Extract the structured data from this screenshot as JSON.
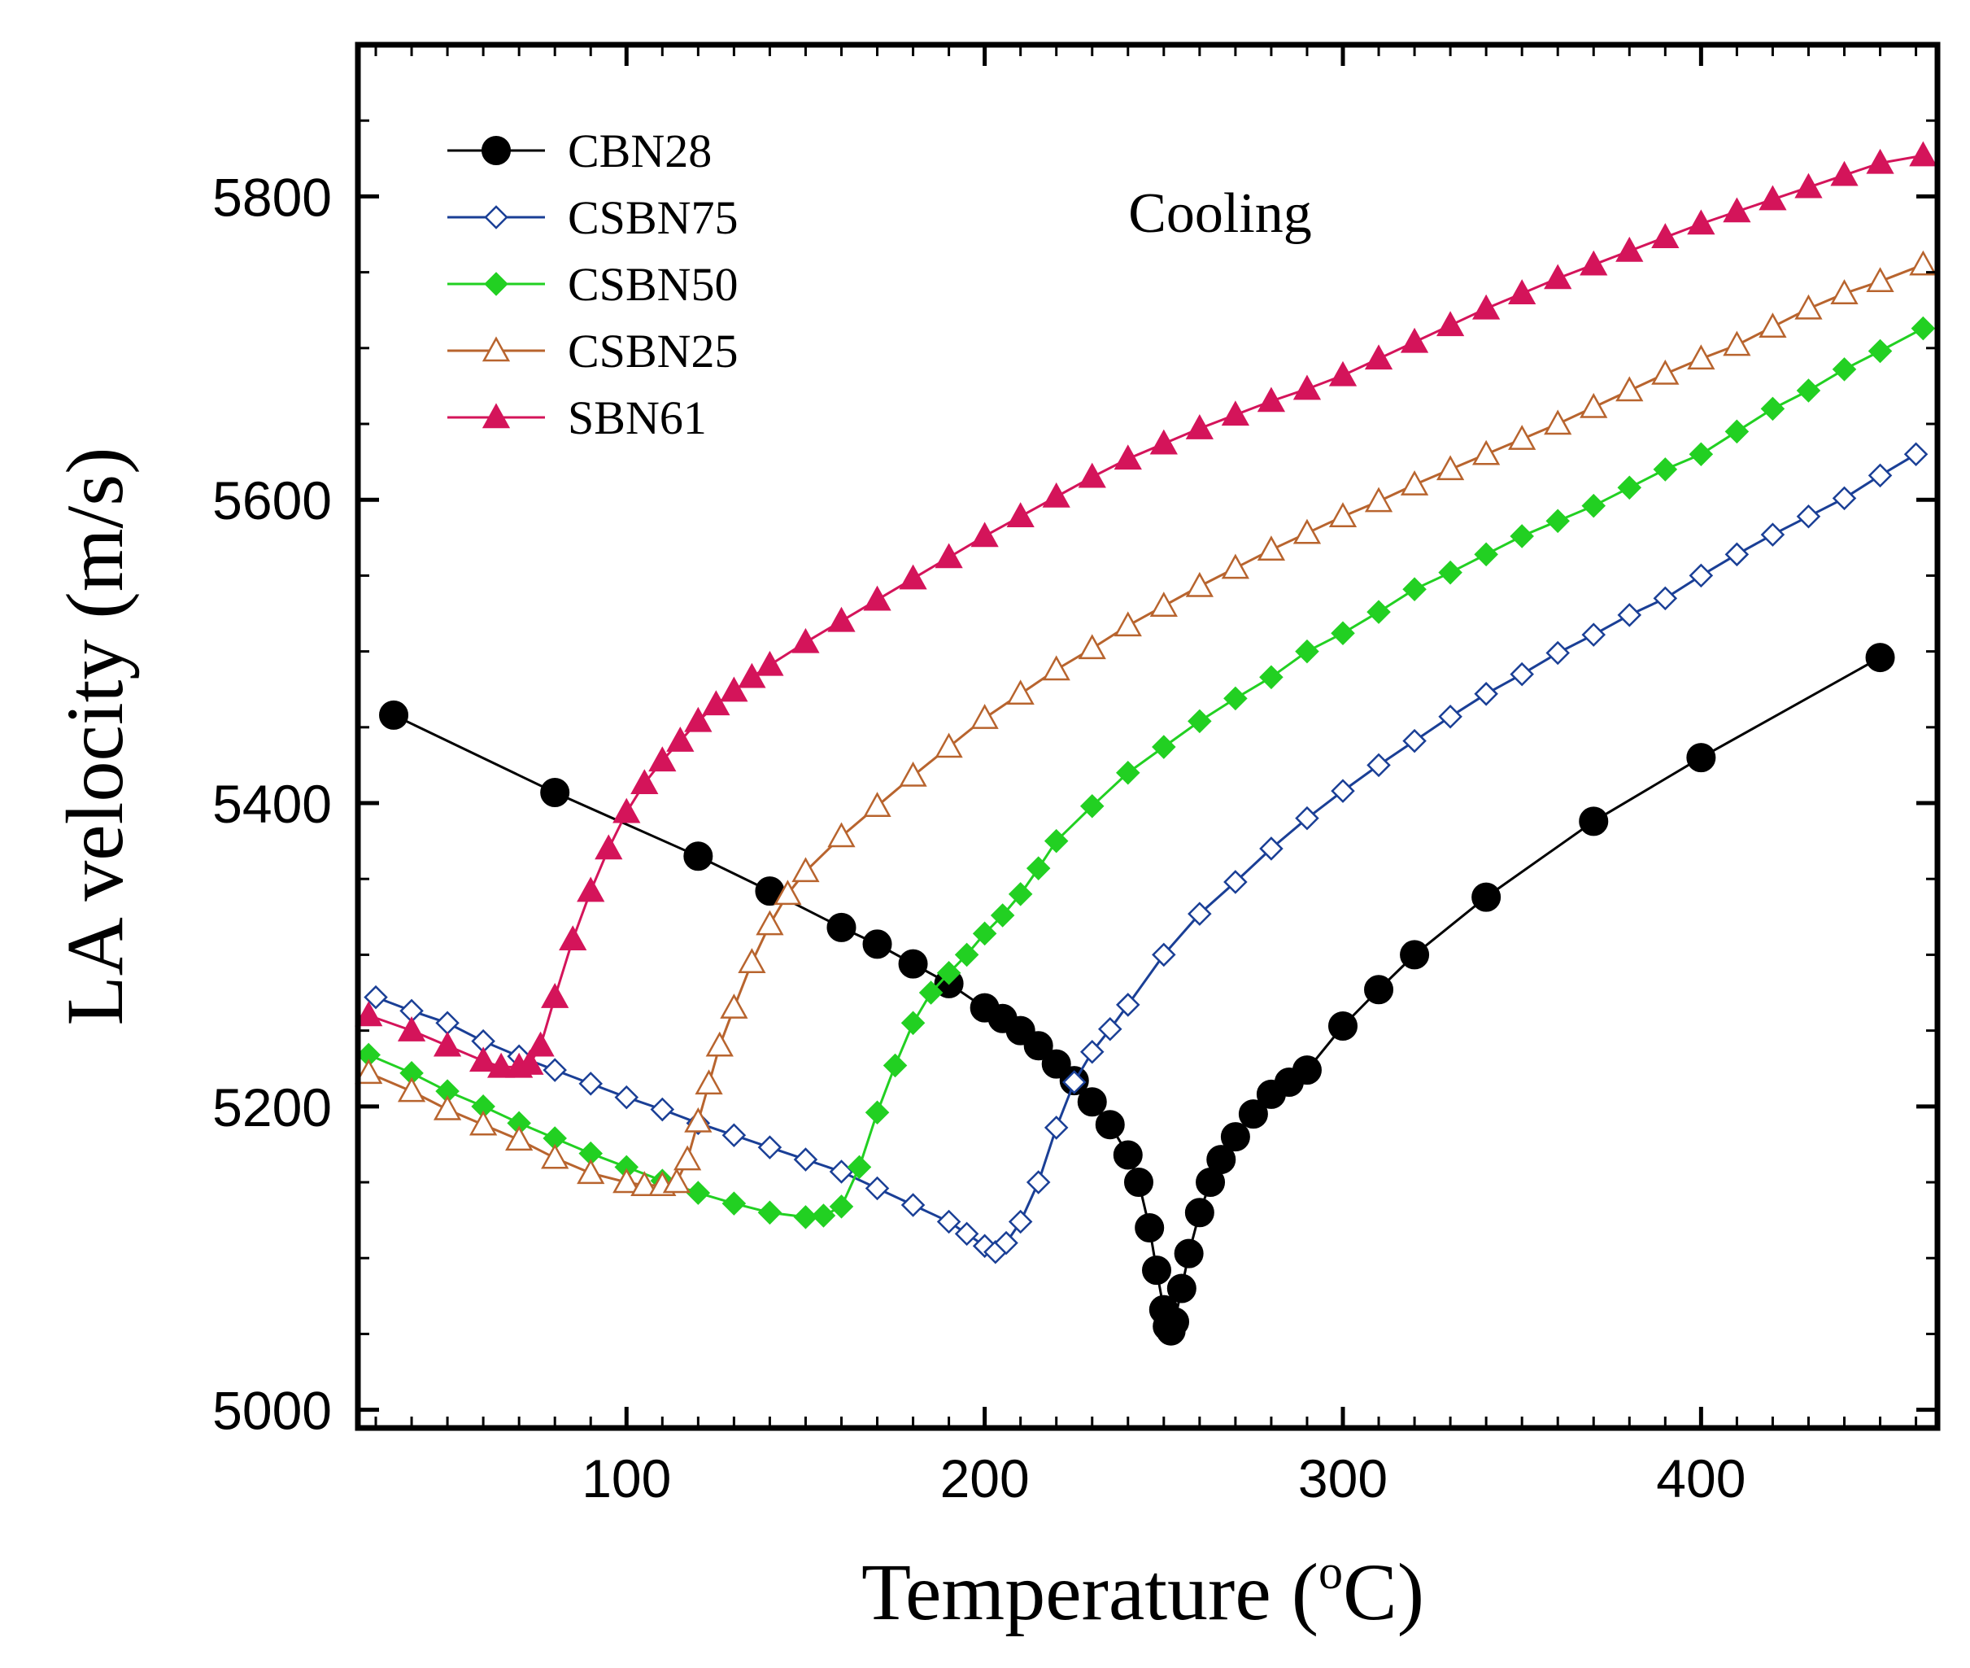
{
  "chart_data": {
    "type": "line",
    "title": "",
    "xlabel": "Temperature (",
    "xlabel_sup": "o",
    "xlabel_unit": "C)",
    "ylabel": "LA velocity (m/s)",
    "xlim": [
      25,
      466
    ],
    "ylim": [
      4988,
      5900
    ],
    "xticks": [
      100,
      200,
      300,
      400
    ],
    "xtick_labels": [
      "100",
      "200",
      "300",
      "400"
    ],
    "yticks": [
      5000,
      5200,
      5400,
      5600,
      5800
    ],
    "ytick_labels": [
      "5000",
      "5200",
      "5400",
      "5600",
      "5800"
    ],
    "grid": false,
    "legend_position": "top-left",
    "annotation": "Cooling",
    "series": [
      {
        "name": "CBN28",
        "color": "#000000",
        "marker": "circle-filled",
        "points": [
          [
            35,
            5458
          ],
          [
            80,
            5407
          ],
          [
            120,
            5365
          ],
          [
            140,
            5342
          ],
          [
            160,
            5318
          ],
          [
            170,
            5307
          ],
          [
            180,
            5294
          ],
          [
            190,
            5281
          ],
          [
            200,
            5265
          ],
          [
            205,
            5258
          ],
          [
            210,
            5250
          ],
          [
            215,
            5240
          ],
          [
            220,
            5228
          ],
          [
            225,
            5217
          ],
          [
            230,
            5203
          ],
          [
            235,
            5188
          ],
          [
            240,
            5168
          ],
          [
            243,
            5150
          ],
          [
            246,
            5120
          ],
          [
            248,
            5092
          ],
          [
            250,
            5066
          ],
          [
            251,
            5055
          ],
          [
            252,
            5052
          ],
          [
            253,
            5058
          ],
          [
            255,
            5080
          ],
          [
            257,
            5103
          ],
          [
            260,
            5130
          ],
          [
            263,
            5150
          ],
          [
            266,
            5165
          ],
          [
            270,
            5180
          ],
          [
            275,
            5195
          ],
          [
            280,
            5208
          ],
          [
            285,
            5216
          ],
          [
            290,
            5224
          ],
          [
            300,
            5253
          ],
          [
            310,
            5277
          ],
          [
            320,
            5300
          ],
          [
            340,
            5338
          ],
          [
            370,
            5388
          ],
          [
            400,
            5430
          ],
          [
            450,
            5496
          ]
        ]
      },
      {
        "name": "CSBN75",
        "color": "#1a3f96",
        "marker": "diamond-open",
        "points": [
          [
            30,
            5272
          ],
          [
            40,
            5263
          ],
          [
            50,
            5255
          ],
          [
            60,
            5243
          ],
          [
            70,
            5233
          ],
          [
            80,
            5224
          ],
          [
            90,
            5215
          ],
          [
            100,
            5206
          ],
          [
            110,
            5198
          ],
          [
            120,
            5189
          ],
          [
            130,
            5181
          ],
          [
            140,
            5173
          ],
          [
            150,
            5165
          ],
          [
            160,
            5157
          ],
          [
            170,
            5146
          ],
          [
            180,
            5135
          ],
          [
            190,
            5124
          ],
          [
            195,
            5116
          ],
          [
            200,
            5108
          ],
          [
            203,
            5104
          ],
          [
            206,
            5110
          ],
          [
            210,
            5124
          ],
          [
            215,
            5150
          ],
          [
            220,
            5186
          ],
          [
            225,
            5216
          ],
          [
            230,
            5236
          ],
          [
            235,
            5251
          ],
          [
            240,
            5267
          ],
          [
            250,
            5300
          ],
          [
            260,
            5327
          ],
          [
            270,
            5348
          ],
          [
            280,
            5370
          ],
          [
            290,
            5390
          ],
          [
            300,
            5408
          ],
          [
            310,
            5425
          ],
          [
            320,
            5441
          ],
          [
            330,
            5457
          ],
          [
            340,
            5472
          ],
          [
            350,
            5485
          ],
          [
            360,
            5499
          ],
          [
            370,
            5511
          ],
          [
            380,
            5524
          ],
          [
            390,
            5535
          ],
          [
            400,
            5550
          ],
          [
            410,
            5564
          ],
          [
            420,
            5577
          ],
          [
            430,
            5589
          ],
          [
            440,
            5601
          ],
          [
            450,
            5616
          ],
          [
            460,
            5630
          ]
        ]
      },
      {
        "name": "CSBN50",
        "color": "#22d022",
        "marker": "diamond-filled",
        "points": [
          [
            28,
            5234
          ],
          [
            40,
            5222
          ],
          [
            50,
            5210
          ],
          [
            60,
            5200
          ],
          [
            70,
            5189
          ],
          [
            80,
            5179
          ],
          [
            90,
            5169
          ],
          [
            100,
            5160
          ],
          [
            110,
            5151
          ],
          [
            120,
            5143
          ],
          [
            130,
            5136
          ],
          [
            140,
            5130
          ],
          [
            150,
            5127
          ],
          [
            155,
            5128
          ],
          [
            160,
            5134
          ],
          [
            165,
            5160
          ],
          [
            170,
            5196
          ],
          [
            175,
            5227
          ],
          [
            180,
            5255
          ],
          [
            185,
            5275
          ],
          [
            190,
            5288
          ],
          [
            195,
            5300
          ],
          [
            200,
            5314
          ],
          [
            205,
            5326
          ],
          [
            210,
            5340
          ],
          [
            215,
            5357
          ],
          [
            220,
            5375
          ],
          [
            230,
            5398
          ],
          [
            240,
            5420
          ],
          [
            250,
            5437
          ],
          [
            260,
            5454
          ],
          [
            270,
            5469
          ],
          [
            280,
            5483
          ],
          [
            290,
            5500
          ],
          [
            300,
            5512
          ],
          [
            310,
            5526
          ],
          [
            320,
            5541
          ],
          [
            330,
            5552
          ],
          [
            340,
            5564
          ],
          [
            350,
            5576
          ],
          [
            360,
            5586
          ],
          [
            370,
            5596
          ],
          [
            380,
            5608
          ],
          [
            390,
            5620
          ],
          [
            400,
            5630
          ],
          [
            410,
            5645
          ],
          [
            420,
            5660
          ],
          [
            430,
            5672
          ],
          [
            440,
            5686
          ],
          [
            450,
            5698
          ],
          [
            462,
            5713
          ]
        ]
      },
      {
        "name": "CSBN25",
        "color": "#b8642e",
        "marker": "triangle-open",
        "points": [
          [
            28,
            5222
          ],
          [
            40,
            5210
          ],
          [
            50,
            5198
          ],
          [
            60,
            5188
          ],
          [
            70,
            5178
          ],
          [
            80,
            5166
          ],
          [
            90,
            5156
          ],
          [
            100,
            5150
          ],
          [
            105,
            5148
          ],
          [
            110,
            5148
          ],
          [
            114,
            5150
          ],
          [
            117,
            5165
          ],
          [
            120,
            5190
          ],
          [
            123,
            5215
          ],
          [
            126,
            5240
          ],
          [
            130,
            5265
          ],
          [
            135,
            5295
          ],
          [
            140,
            5320
          ],
          [
            145,
            5340
          ],
          [
            150,
            5355
          ],
          [
            160,
            5378
          ],
          [
            170,
            5398
          ],
          [
            180,
            5418
          ],
          [
            190,
            5437
          ],
          [
            200,
            5456
          ],
          [
            210,
            5472
          ],
          [
            220,
            5488
          ],
          [
            230,
            5502
          ],
          [
            240,
            5517
          ],
          [
            250,
            5530
          ],
          [
            260,
            5543
          ],
          [
            270,
            5555
          ],
          [
            280,
            5567
          ],
          [
            290,
            5578
          ],
          [
            300,
            5589
          ],
          [
            310,
            5599
          ],
          [
            320,
            5610
          ],
          [
            330,
            5620
          ],
          [
            340,
            5630
          ],
          [
            350,
            5640
          ],
          [
            360,
            5650
          ],
          [
            370,
            5661
          ],
          [
            380,
            5672
          ],
          [
            390,
            5683
          ],
          [
            400,
            5693
          ],
          [
            410,
            5702
          ],
          [
            420,
            5714
          ],
          [
            430,
            5726
          ],
          [
            440,
            5736
          ],
          [
            450,
            5744
          ],
          [
            462,
            5755
          ]
        ]
      },
      {
        "name": "SBN61",
        "color": "#d4145a",
        "marker": "triangle-filled",
        "points": [
          [
            28,
            5260
          ],
          [
            40,
            5250
          ],
          [
            50,
            5240
          ],
          [
            60,
            5230
          ],
          [
            65,
            5226
          ],
          [
            70,
            5226
          ],
          [
            73,
            5228
          ],
          [
            76,
            5240
          ],
          [
            80,
            5272
          ],
          [
            85,
            5310
          ],
          [
            90,
            5342
          ],
          [
            95,
            5370
          ],
          [
            100,
            5394
          ],
          [
            105,
            5413
          ],
          [
            110,
            5428
          ],
          [
            115,
            5441
          ],
          [
            120,
            5454
          ],
          [
            125,
            5465
          ],
          [
            130,
            5474
          ],
          [
            135,
            5483
          ],
          [
            140,
            5491
          ],
          [
            150,
            5506
          ],
          [
            160,
            5520
          ],
          [
            170,
            5534
          ],
          [
            180,
            5548
          ],
          [
            190,
            5562
          ],
          [
            200,
            5576
          ],
          [
            210,
            5589
          ],
          [
            220,
            5602
          ],
          [
            230,
            5615
          ],
          [
            240,
            5627
          ],
          [
            250,
            5637
          ],
          [
            260,
            5647
          ],
          [
            270,
            5656
          ],
          [
            280,
            5665
          ],
          [
            290,
            5673
          ],
          [
            300,
            5682
          ],
          [
            310,
            5693
          ],
          [
            320,
            5704
          ],
          [
            330,
            5715
          ],
          [
            340,
            5726
          ],
          [
            350,
            5736
          ],
          [
            360,
            5746
          ],
          [
            370,
            5755
          ],
          [
            380,
            5764
          ],
          [
            390,
            5773
          ],
          [
            400,
            5782
          ],
          [
            410,
            5790
          ],
          [
            420,
            5798
          ],
          [
            430,
            5806
          ],
          [
            440,
            5814
          ],
          [
            450,
            5822
          ],
          [
            462,
            5827
          ]
        ]
      }
    ]
  }
}
